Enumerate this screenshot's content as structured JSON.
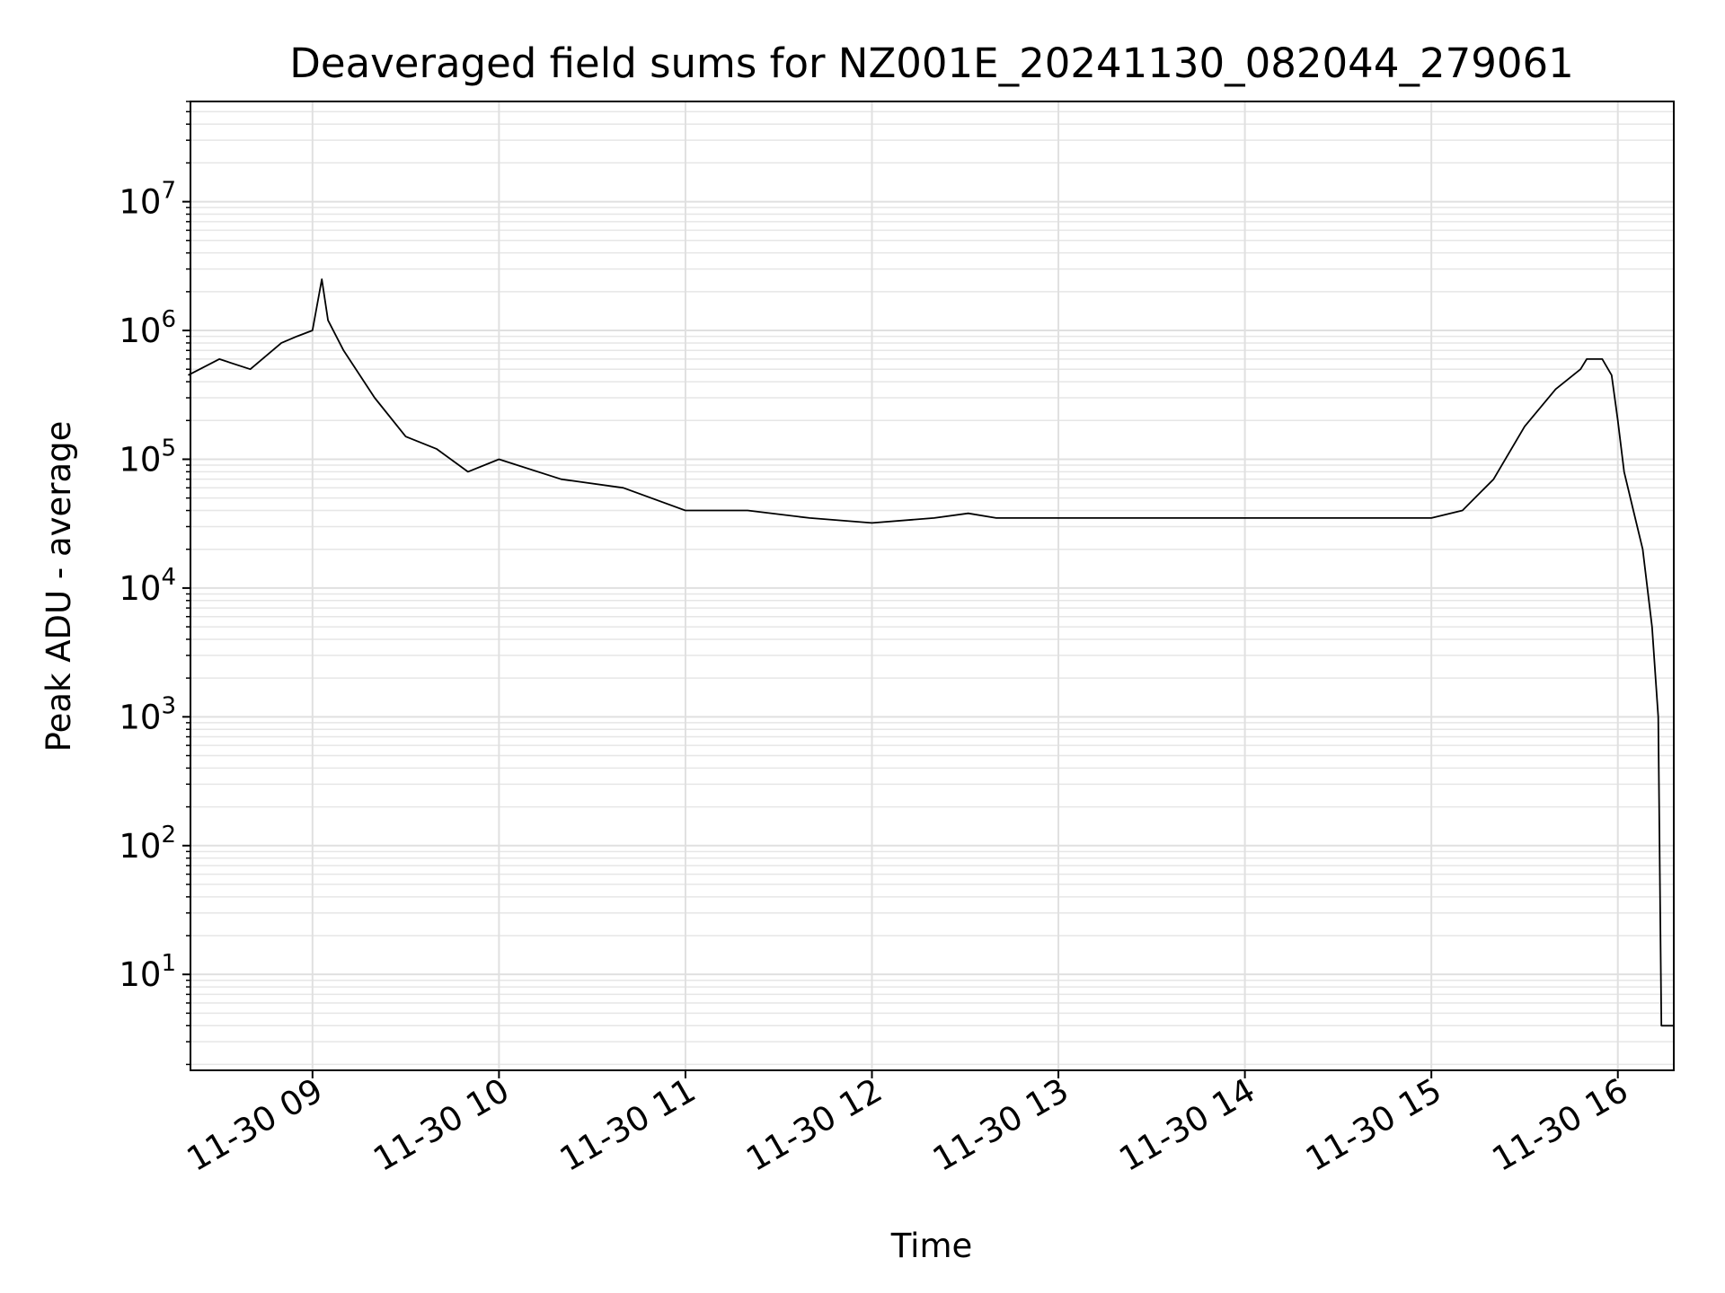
{
  "chart_data": {
    "type": "line",
    "title": "Deaveraged field sums for NZ001E_20241130_082044_279061",
    "xlabel": "Time",
    "ylabel": "Peak ADU - average",
    "yscale": "log",
    "ylim": [
      1.8,
      60000000
    ],
    "xlim": [
      "2024-11-30 08:20:44",
      "2024-11-30 16:18:00"
    ],
    "grid": true,
    "line_color": "#000000",
    "x_ticks": [
      "2024-11-30 09:00",
      "2024-11-30 10:00",
      "2024-11-30 11:00",
      "2024-11-30 12:00",
      "2024-11-30 13:00",
      "2024-11-30 14:00",
      "2024-11-30 15:00",
      "2024-11-30 16:00"
    ],
    "x_tick_labels": [
      "11-30 09",
      "11-30 10",
      "11-30 11",
      "11-30 12",
      "11-30 13",
      "11-30 14",
      "11-30 15",
      "11-30 16"
    ],
    "y_tick_labels": [
      {
        "base": "10",
        "exp": "1",
        "value": 10
      },
      {
        "base": "10",
        "exp": "2",
        "value": 100
      },
      {
        "base": "10",
        "exp": "3",
        "value": 1000
      },
      {
        "base": "10",
        "exp": "4",
        "value": 10000
      },
      {
        "base": "10",
        "exp": "5",
        "value": 100000
      },
      {
        "base": "10",
        "exp": "6",
        "value": 1000000
      },
      {
        "base": "10",
        "exp": "7",
        "value": 10000000
      }
    ],
    "series": [
      {
        "x": [
          "2024-11-30 08:20",
          "2024-11-30 08:30",
          "2024-11-30 08:40",
          "2024-11-30 08:50",
          "2024-11-30 08:55",
          "2024-11-30 09:00",
          "2024-11-30 09:03",
          "2024-11-30 09:05",
          "2024-11-30 09:10",
          "2024-11-30 09:20",
          "2024-11-30 09:30",
          "2024-11-30 09:40",
          "2024-11-30 09:50",
          "2024-11-30 10:00",
          "2024-11-30 10:20",
          "2024-11-30 10:40",
          "2024-11-30 11:00",
          "2024-11-30 11:20",
          "2024-11-30 11:40",
          "2024-11-30 12:00",
          "2024-11-30 12:20",
          "2024-11-30 12:31",
          "2024-11-30 12:40",
          "2024-11-30 13:00",
          "2024-11-30 13:20",
          "2024-11-30 13:40",
          "2024-11-30 14:00",
          "2024-11-30 14:20",
          "2024-11-30 14:40",
          "2024-11-30 15:00",
          "2024-11-30 15:10",
          "2024-11-30 15:20",
          "2024-11-30 15:30",
          "2024-11-30 15:40",
          "2024-11-30 15:48",
          "2024-11-30 15:50",
          "2024-11-30 15:55",
          "2024-11-30 15:58",
          "2024-11-30 16:00",
          "2024-11-30 16:02",
          "2024-11-30 16:05",
          "2024-11-30 16:08",
          "2024-11-30 16:11",
          "2024-11-30 16:13",
          "2024-11-30 16:14",
          "2024-11-30 16:15",
          "2024-11-30 16:18"
        ],
        "y": [
          450000,
          600000,
          500000,
          800000,
          900000,
          1000000,
          2500000,
          1200000,
          700000,
          300000,
          150000,
          120000,
          80000,
          100000,
          70000,
          60000,
          40000,
          40000,
          35000,
          32000,
          35000,
          38000,
          35000,
          35000,
          35000,
          35000,
          35000,
          35000,
          35000,
          35000,
          40000,
          70000,
          180000,
          350000,
          500000,
          600000,
          600000,
          450000,
          200000,
          80000,
          40000,
          20000,
          5000,
          1000,
          4,
          4,
          4
        ]
      }
    ]
  }
}
